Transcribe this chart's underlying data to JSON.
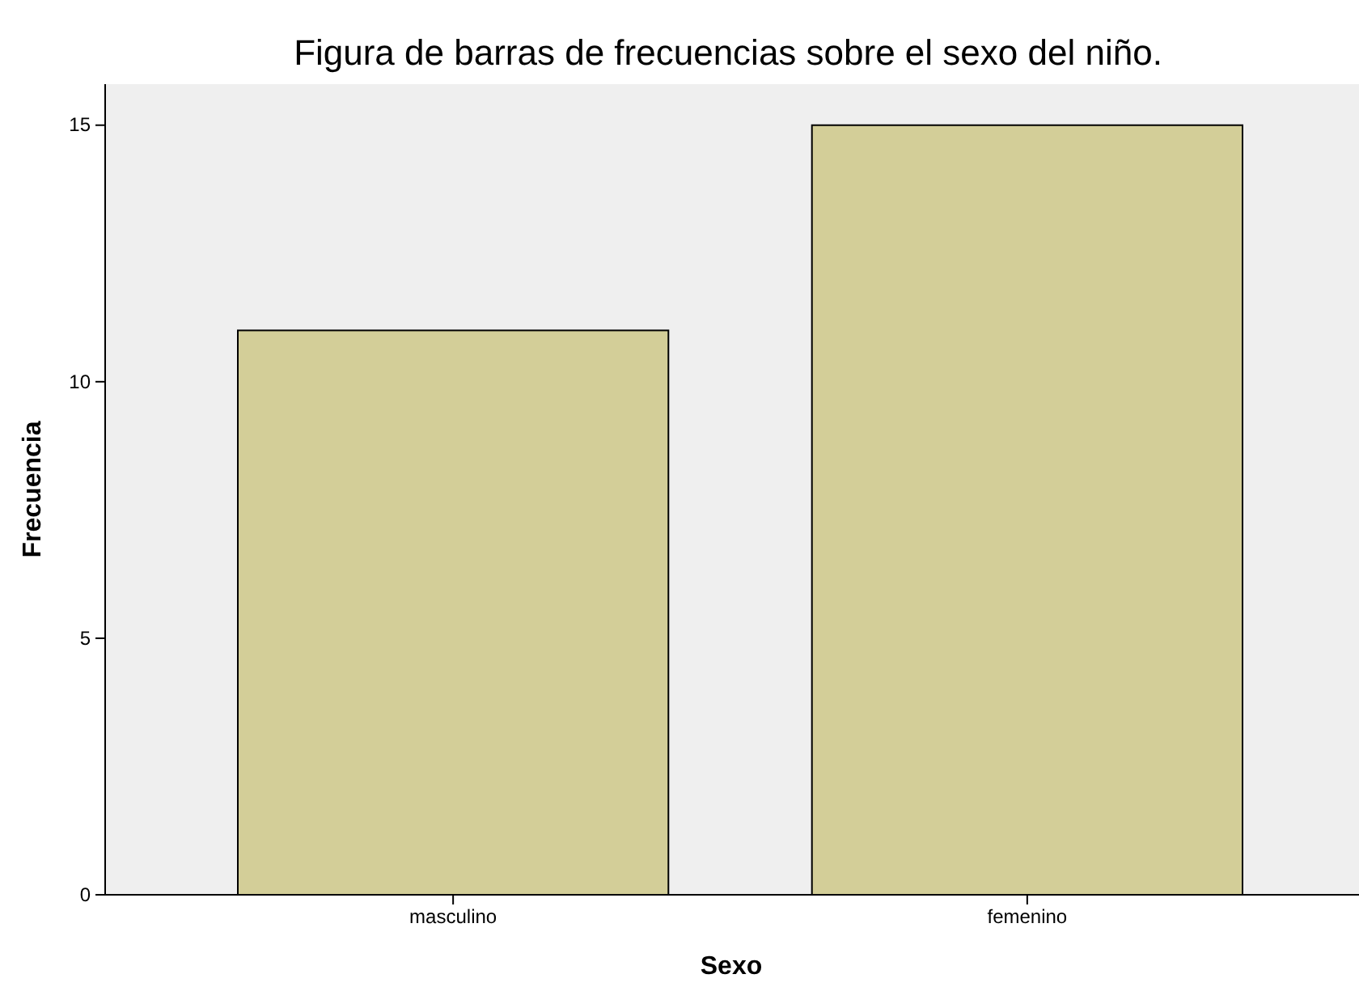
{
  "chart_data": {
    "type": "bar",
    "title": "Figura de barras de frecuencias sobre el sexo del niño.",
    "xlabel": "Sexo",
    "ylabel": "Frecuencia",
    "categories": [
      "masculino",
      "femenino"
    ],
    "values": [
      11,
      15
    ],
    "color": "#d3ce98",
    "ylim": [
      0,
      15.8
    ],
    "yticks": [
      0,
      5,
      10,
      15
    ],
    "grid": false
  }
}
